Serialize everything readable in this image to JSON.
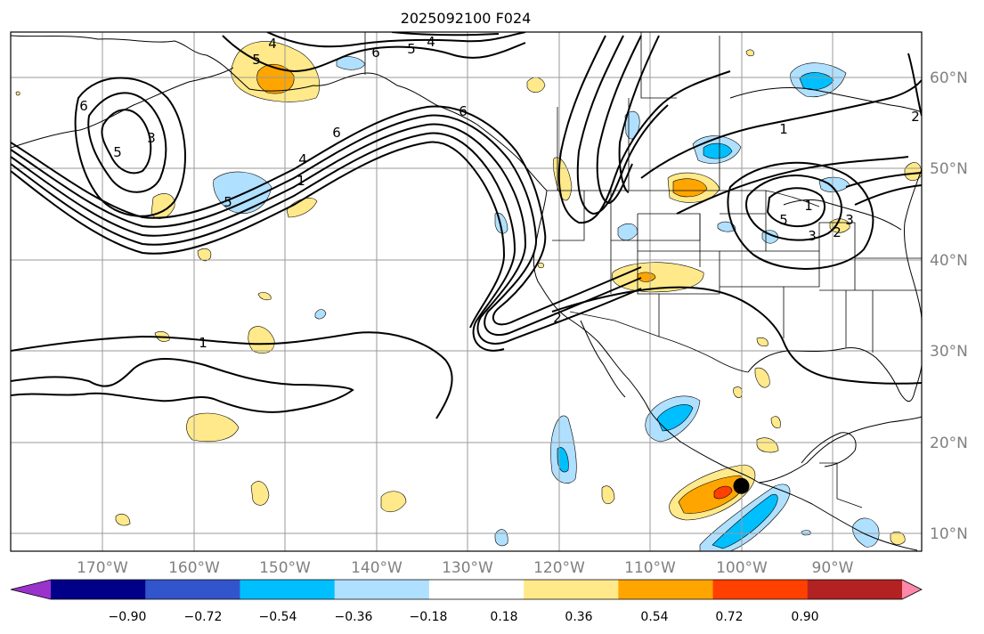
{
  "title": "2025092100 F024",
  "lat_labels": [
    "60°N",
    "50°N",
    "40°N",
    "30°N",
    "20°N",
    "10°N"
  ],
  "lon_labels": [
    "170°W",
    "160°W",
    "150°W",
    "140°W",
    "130°W",
    "120°W",
    "110°W",
    "100°W",
    "90°W"
  ],
  "colorbar": {
    "ticks": [
      "−0.90",
      "−0.72",
      "−0.54",
      "−0.36",
      "−0.18",
      "0.18",
      "0.36",
      "0.54",
      "0.72",
      "0.90"
    ],
    "colors": [
      "#9933cc",
      "#000088",
      "#3355cc",
      "#00bfff",
      "#b0e0ff",
      "#ffffff",
      "#ffe98a",
      "#ffa500",
      "#ff4000",
      "#b22222",
      "#ff88aa"
    ]
  },
  "contour_labels": [
    "4",
    "5",
    "4",
    "6",
    "5",
    "6",
    "3",
    "6",
    "5",
    "4",
    "1",
    "5",
    "6",
    "1",
    "3",
    "2",
    "5",
    "3",
    "2",
    "1",
    "2",
    "1"
  ],
  "marker": {
    "type": "black-dot",
    "lon": -100.0,
    "lat": 15.2
  }
}
